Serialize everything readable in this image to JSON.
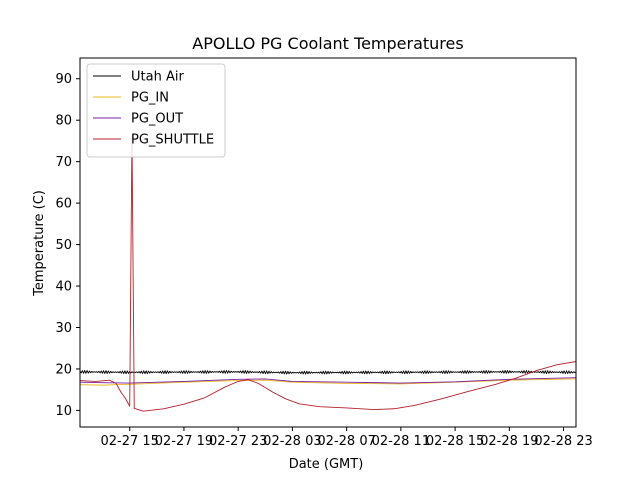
{
  "chart_data": {
    "type": "line",
    "title": "APOLLO PG Coolant Temperatures",
    "xlabel": "Date (GMT)",
    "ylabel": "Temperature (C)",
    "x_type": "datetime",
    "xlim": [
      "2018-02-27T11:20",
      "2018-02-28T23:55"
    ],
    "ylim": [
      6,
      95
    ],
    "y_ticks": [
      10,
      20,
      30,
      40,
      50,
      60,
      70,
      80,
      90
    ],
    "x_ticks": [
      {
        "t": "2018-02-27T15:00",
        "label": "02-27 15"
      },
      {
        "t": "2018-02-27T19:00",
        "label": "02-27 19"
      },
      {
        "t": "2018-02-27T23:00",
        "label": "02-27 23"
      },
      {
        "t": "2018-02-28T03:00",
        "label": "02-28 03"
      },
      {
        "t": "2018-02-28T07:00",
        "label": "02-28 07"
      },
      {
        "t": "2018-02-28T11:00",
        "label": "02-28 11"
      },
      {
        "t": "2018-02-28T15:00",
        "label": "02-28 15"
      },
      {
        "t": "2018-02-28T19:00",
        "label": "02-28 19"
      },
      {
        "t": "2018-02-28T23:00",
        "label": "02-28 23"
      }
    ],
    "grid": false,
    "legend": {
      "placement": "upper-left"
    },
    "series": [
      {
        "name": "Utah Air",
        "color": "#000000",
        "style": "oscillating",
        "amplitude": 0.35,
        "x": [
          "2018-02-27T11:20",
          "2018-02-27T15:00",
          "2018-02-27T23:00",
          "2018-02-28T03:00",
          "2018-02-28T11:00",
          "2018-02-28T19:00",
          "2018-02-28T23:55"
        ],
        "y": [
          19.3,
          19.2,
          19.3,
          19.1,
          19.2,
          19.3,
          19.2
        ]
      },
      {
        "name": "PG_IN",
        "color": "#e8b820",
        "style": "smooth",
        "x": [
          "2018-02-27T11:20",
          "2018-02-27T13:00",
          "2018-02-27T15:00",
          "2018-02-27T19:00",
          "2018-02-27T23:00",
          "2018-02-28T01:00",
          "2018-02-28T03:00",
          "2018-02-28T07:00",
          "2018-02-28T11:00",
          "2018-02-28T15:00",
          "2018-02-28T19:00",
          "2018-02-28T23:55"
        ],
        "y": [
          16.2,
          16.1,
          16.3,
          16.8,
          17.2,
          17.3,
          16.8,
          16.5,
          16.4,
          16.8,
          17.3,
          17.6
        ]
      },
      {
        "name": "PG_OUT",
        "color": "#7a1fa2",
        "style": "smooth",
        "x": [
          "2018-02-27T11:20",
          "2018-02-27T13:00",
          "2018-02-27T15:00",
          "2018-02-27T19:00",
          "2018-02-27T23:00",
          "2018-02-28T01:00",
          "2018-02-28T03:00",
          "2018-02-28T07:00",
          "2018-02-28T11:00",
          "2018-02-28T15:00",
          "2018-02-28T19:00",
          "2018-02-28T23:55"
        ],
        "y": [
          16.8,
          16.7,
          16.6,
          17.0,
          17.5,
          17.6,
          17.0,
          16.8,
          16.6,
          16.9,
          17.5,
          17.9
        ]
      },
      {
        "name": "PG_SHUTTLE",
        "color": "#b5202a",
        "style": "smooth",
        "x": [
          "2018-02-27T11:20",
          "2018-02-27T12:30",
          "2018-02-27T13:30",
          "2018-02-27T14:00",
          "2018-02-27T14:20",
          "2018-02-27T14:40",
          "2018-02-27T14:50",
          "2018-02-27T15:00",
          "2018-02-27T15:10",
          "2018-02-27T15:20",
          "2018-02-27T16:00",
          "2018-02-27T17:30",
          "2018-02-27T19:00",
          "2018-02-27T20:30",
          "2018-02-27T22:00",
          "2018-02-27T23:00",
          "2018-02-27T23:45",
          "2018-02-28T00:30",
          "2018-02-28T01:30",
          "2018-02-28T02:30",
          "2018-02-28T03:30",
          "2018-02-28T05:00",
          "2018-02-28T07:00",
          "2018-02-28T09:00",
          "2018-02-28T10:30",
          "2018-02-28T12:00",
          "2018-02-28T14:00",
          "2018-02-28T16:00",
          "2018-02-28T18:00",
          "2018-02-28T19:30",
          "2018-02-28T21:00",
          "2018-02-28T22:30",
          "2018-02-28T23:55"
        ],
        "y": [
          17.2,
          17.0,
          17.3,
          16.5,
          14.5,
          13.0,
          12.0,
          11.0,
          76.5,
          10.5,
          9.8,
          10.4,
          11.5,
          13.0,
          15.6,
          17.0,
          17.4,
          16.5,
          14.5,
          12.8,
          11.6,
          10.9,
          10.6,
          10.2,
          10.4,
          11.2,
          12.8,
          14.6,
          16.3,
          17.8,
          19.6,
          21.0,
          21.8
        ]
      }
    ]
  }
}
